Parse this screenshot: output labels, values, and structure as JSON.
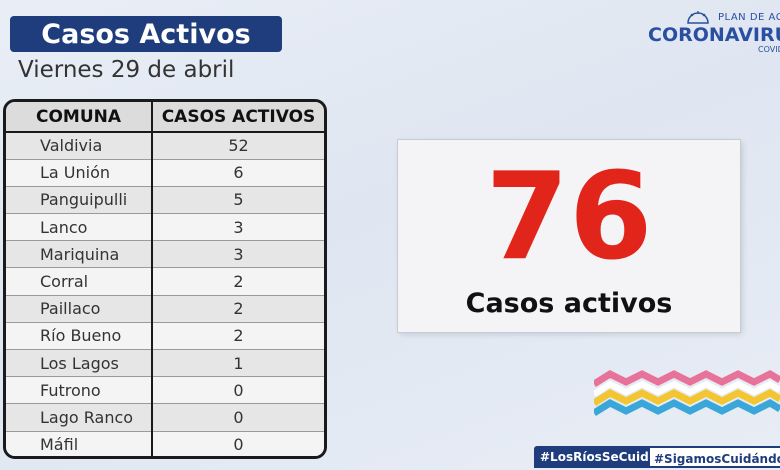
{
  "header": {
    "title": "Casos Activos",
    "subtitle": "Viernes 29 de abril"
  },
  "logo": {
    "plan_text": "PLAN DE ACCI",
    "brand_text": "CORONAVIRU",
    "sub_text": "COVID"
  },
  "table": {
    "headers": [
      "COMUNA",
      "CASOS ACTIVOS"
    ],
    "rows": [
      {
        "comuna": "Valdivia",
        "casos": "52"
      },
      {
        "comuna": "La Unión",
        "casos": "6"
      },
      {
        "comuna": "Panguipulli",
        "casos": "5"
      },
      {
        "comuna": "Lanco",
        "casos": "3"
      },
      {
        "comuna": "Mariquina",
        "casos": "3"
      },
      {
        "comuna": "Corral",
        "casos": "2"
      },
      {
        "comuna": "Paillaco",
        "casos": "2"
      },
      {
        "comuna": "Río Bueno",
        "casos": "2"
      },
      {
        "comuna": "Los Lagos",
        "casos": "1"
      },
      {
        "comuna": "Futrono",
        "casos": "0"
      },
      {
        "comuna": "Lago Ranco",
        "casos": "0"
      },
      {
        "comuna": "Máfil",
        "casos": "0"
      }
    ]
  },
  "summary": {
    "total": "76",
    "label": "Casos activos"
  },
  "hashtags": {
    "first": "#LosRíosSeCuida",
    "second": "#SigamosCuidándon"
  },
  "colors": {
    "accent_blue": "#1f3d7d",
    "number_red": "#e1251b",
    "wave_pink": "#e8739a",
    "wave_yellow": "#f2c531",
    "wave_cyan": "#3aa7d8",
    "wave_white": "#ffffff"
  }
}
